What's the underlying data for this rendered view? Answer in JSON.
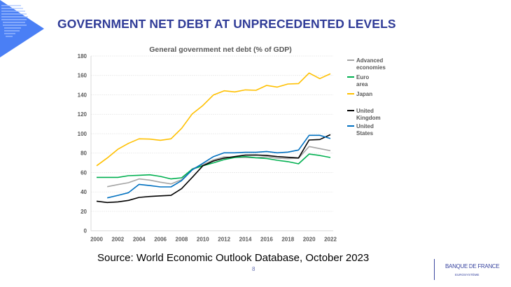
{
  "slide": {
    "title": "GOVERNMENT NET DEBT AT UNPRECEDENTED LEVELS",
    "source": "Source: World Economic Outlook Database, October 2023",
    "page_number": "8",
    "logo_text": "BANQUE DE FRANCE",
    "logo_subtext": "EUROSYSTÈME",
    "accent_color": "#2f3b97"
  },
  "chart_data": {
    "type": "line",
    "title": "General government net debt (% of GDP)",
    "xlabel": "",
    "ylabel": "",
    "x": [
      2000,
      2001,
      2002,
      2003,
      2004,
      2005,
      2006,
      2007,
      2008,
      2009,
      2010,
      2011,
      2012,
      2013,
      2014,
      2015,
      2016,
      2017,
      2018,
      2019,
      2020,
      2021,
      2022
    ],
    "xticks": [
      "2000",
      "2002",
      "2004",
      "2006",
      "2008",
      "2010",
      "2012",
      "2014",
      "2016",
      "2018",
      "2020",
      "2022"
    ],
    "yticks": [
      "0",
      "20",
      "40",
      "60",
      "80",
      "100",
      "120",
      "140",
      "160",
      "180"
    ],
    "ylim": [
      0,
      180
    ],
    "xlim": [
      2000,
      2022
    ],
    "grid": "horizontal",
    "legend_position": "right",
    "series": [
      {
        "name": "Advanced economies",
        "color": "#a5a5a5",
        "values": [
          null,
          45.4,
          47.6,
          49.5,
          53.4,
          52.2,
          50,
          48.3,
          52.6,
          63.7,
          68,
          73,
          76.2,
          75.5,
          75.5,
          75.2,
          76.2,
          74.8,
          74.3,
          74.8,
          86.8,
          84.6,
          82.5
        ]
      },
      {
        "name": "Euro area",
        "color": "#00b050",
        "values": [
          55,
          55,
          55,
          56.7,
          57.2,
          57.7,
          56,
          53.4,
          54.6,
          63.5,
          67,
          70,
          73.3,
          75.5,
          76.4,
          75.2,
          74.5,
          72.6,
          71.2,
          69,
          79,
          77.6,
          75.5
        ]
      },
      {
        "name": "Japan",
        "color": "#ffc000",
        "values": [
          67,
          75,
          84,
          90,
          94.7,
          94.4,
          93.2,
          94.7,
          105.5,
          120.4,
          129,
          139.9,
          144.2,
          143,
          145.1,
          144.7,
          149.7,
          148,
          151.2,
          151.6,
          162.5,
          156.7,
          161.7
        ]
      },
      {
        "name": "United Kingdom",
        "color": "#000000",
        "values": [
          30.5,
          29.1,
          29.8,
          31.3,
          34.4,
          35.3,
          36,
          36.5,
          43.5,
          55,
          67,
          71.9,
          74.8,
          76.4,
          77.9,
          78.1,
          77.6,
          76.4,
          75.7,
          75,
          93.5,
          94,
          99
        ]
      },
      {
        "name": "United States",
        "color": "#0070c0",
        "values": [
          null,
          33.9,
          36.5,
          39.2,
          47.8,
          46.6,
          45.2,
          45.2,
          51.7,
          62.7,
          69.5,
          76.4,
          80.3,
          80.3,
          80.8,
          80.8,
          81.7,
          80.3,
          81,
          83.2,
          98.3,
          98.3,
          95
        ]
      }
    ]
  }
}
